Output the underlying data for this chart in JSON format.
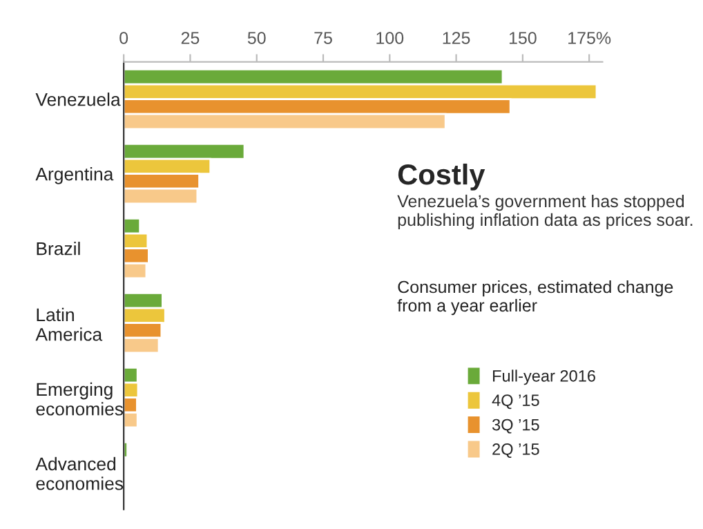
{
  "chart_data": {
    "type": "bar",
    "orientation": "horizontal",
    "title": "Costly",
    "subtitle": "Venezuela’s government has stopped publishing inflation data as prices soar.",
    "legend_title": "Consumer prices, estimated change from a year earlier",
    "categories": [
      "Venezuela",
      "Argentina",
      "Brazil",
      "Latin\nAmerica",
      "Emerging\neconomies",
      "Advanced\neconomies"
    ],
    "series": [
      {
        "name": "Full-year 2016",
        "color": "#6aaa3a",
        "values": [
          142.5,
          45.4,
          6.1,
          14.6,
          5.2,
          1.4
        ]
      },
      {
        "name": "4Q ’15",
        "color": "#ecc63c",
        "values": [
          177.8,
          32.6,
          9,
          15.6,
          5.4,
          null
        ]
      },
      {
        "name": "3Q ’15",
        "color": "#e8922e",
        "values": [
          145.4,
          28.4,
          9.4,
          14.2,
          5,
          null
        ]
      },
      {
        "name": "2Q ’15",
        "color": "#f8c98a",
        "values": [
          121,
          27.7,
          8.5,
          13.2,
          5.2,
          null
        ]
      }
    ],
    "xlim": [
      0,
      180
    ],
    "xticks": [
      0,
      25,
      50,
      75,
      100,
      125,
      150,
      {
        "value": 175,
        "label": "175%"
      }
    ],
    "grid": false,
    "legend": "bottom right"
  }
}
